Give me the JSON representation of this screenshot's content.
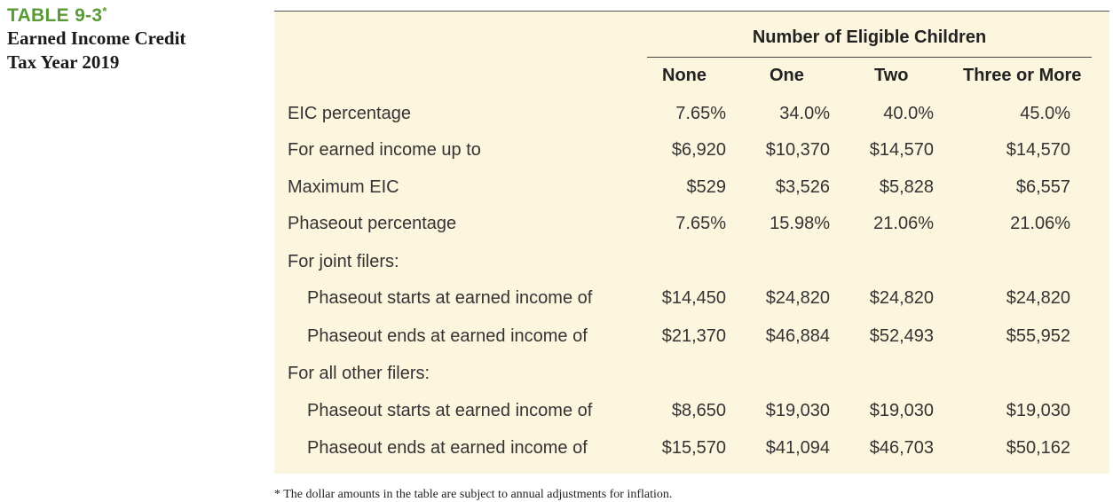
{
  "caption": {
    "label": "TABLE 9-3",
    "marker": "*",
    "title_line1": "Earned Income Credit",
    "title_line2": "Tax Year 2019"
  },
  "table": {
    "group_header": "Number of Eligible Children",
    "columns": [
      "None",
      "One",
      "Two",
      "Three or More"
    ],
    "rows": [
      {
        "label": "EIC percentage",
        "indent": false,
        "values": [
          "7.65%",
          "34.0%",
          "40.0%",
          "45.0%"
        ]
      },
      {
        "label": "For earned income up to",
        "indent": false,
        "values": [
          "$6,920",
          "$10,370",
          "$14,570",
          "$14,570"
        ]
      },
      {
        "label": "Maximum EIC",
        "indent": false,
        "values": [
          "$529",
          "$3,526",
          "$5,828",
          "$6,557"
        ]
      },
      {
        "label": "Phaseout percentage",
        "indent": false,
        "values": [
          "7.65%",
          "15.98%",
          "21.06%",
          "21.06%"
        ]
      },
      {
        "label": "For joint filers:",
        "indent": false,
        "values": []
      },
      {
        "label": "Phaseout starts at earned income of",
        "indent": true,
        "values": [
          "$14,450",
          "$24,820",
          "$24,820",
          "$24,820"
        ]
      },
      {
        "label": "Phaseout ends at earned income of",
        "indent": true,
        "values": [
          "$21,370",
          "$46,884",
          "$52,493",
          "$55,952"
        ]
      },
      {
        "label": "For all other filers:",
        "indent": false,
        "values": []
      },
      {
        "label": "Phaseout starts at earned income of",
        "indent": true,
        "values": [
          "$8,650",
          "$19,030",
          "$19,030",
          "$19,030"
        ]
      },
      {
        "label": "Phaseout ends at earned income of",
        "indent": true,
        "values": [
          "$15,570",
          "$41,094",
          "$46,703",
          "$50,162"
        ]
      }
    ]
  },
  "footnote": "* The dollar amounts in the table are subject to annual adjustments for inflation."
}
